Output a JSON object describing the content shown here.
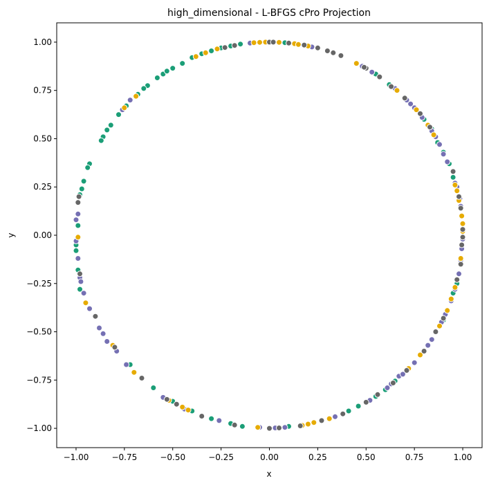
{
  "chart_data": {
    "type": "scatter",
    "title": "high_dimensional - L-BFGS cPro Projection",
    "xlabel": "x",
    "ylabel": "y",
    "xlim": [
      -1.1,
      1.1
    ],
    "ylim": [
      -1.1,
      1.1
    ],
    "xticks": [
      -1.0,
      -0.75,
      -0.5,
      -0.25,
      0.0,
      0.25,
      0.5,
      0.75,
      1.0
    ],
    "yticks": [
      -1.0,
      -0.75,
      -0.5,
      -0.25,
      0.0,
      0.25,
      0.5,
      0.75,
      1.0
    ],
    "xtick_labels": [
      "−1.00",
      "−0.75",
      "−0.50",
      "−0.25",
      "0.00",
      "0.25",
      "0.50",
      "0.75",
      "1.00"
    ],
    "ytick_labels": [
      "−1.00",
      "−0.75",
      "−0.50",
      "−0.25",
      "0.00",
      "0.25",
      "0.50",
      "0.75",
      "1.00"
    ],
    "grid": false,
    "legend": "none",
    "marker_edge_color": "#ffffff",
    "series": [
      {
        "color": "#1b9e77",
        "points": [
          [
            -0.15,
            0.99
          ],
          [
            -0.2,
            0.98
          ],
          [
            -0.25,
            0.97
          ],
          [
            -0.3,
            0.955
          ],
          [
            -0.35,
            0.94
          ],
          [
            -0.4,
            0.92
          ],
          [
            -0.45,
            0.89
          ],
          [
            -0.5,
            0.865
          ],
          [
            -0.55,
            0.835
          ],
          [
            -0.58,
            0.815
          ],
          [
            -0.63,
            0.775
          ],
          [
            -0.68,
            0.73
          ],
          [
            -0.74,
            0.67
          ],
          [
            -0.78,
            0.625
          ],
          [
            -0.82,
            0.57
          ],
          [
            -0.84,
            0.545
          ],
          [
            -0.86,
            0.51
          ],
          [
            -0.87,
            0.49
          ],
          [
            -0.93,
            0.37
          ],
          [
            -0.94,
            0.35
          ],
          [
            -0.96,
            0.28
          ],
          [
            -0.97,
            0.24
          ],
          [
            -0.98,
            0.21
          ],
          [
            -0.99,
            0.05
          ],
          [
            -1.0,
            -0.05
          ],
          [
            -1.0,
            -0.08
          ],
          [
            -0.99,
            -0.18
          ],
          [
            -0.98,
            -0.28
          ],
          [
            -0.72,
            -0.67
          ],
          [
            -0.6,
            -0.79
          ],
          [
            -0.5,
            -0.86
          ],
          [
            -0.4,
            -0.91
          ],
          [
            -0.3,
            -0.95
          ],
          [
            -0.2,
            -0.975
          ],
          [
            -0.14,
            -0.99
          ],
          [
            0.1,
            -0.99
          ],
          [
            0.41,
            -0.91
          ],
          [
            0.46,
            -0.885
          ],
          [
            0.55,
            -0.835
          ],
          [
            0.6,
            -0.8
          ],
          [
            0.65,
            -0.755
          ],
          [
            0.8,
            -0.6
          ],
          [
            0.9,
            -0.44
          ],
          [
            0.95,
            -0.3
          ],
          [
            0.97,
            -0.25
          ],
          [
            0.55,
            0.835
          ],
          [
            0.62,
            0.78
          ],
          [
            0.8,
            0.6
          ],
          [
            0.84,
            0.55
          ],
          [
            0.87,
            0.48
          ],
          [
            0.9,
            0.43
          ],
          [
            0.93,
            0.37
          ],
          [
            0.95,
            0.3
          ],
          [
            0.97,
            0.25
          ],
          [
            -0.05,
            0.998
          ],
          [
            0.08,
            0.997
          ],
          [
            -0.65,
            0.76
          ],
          [
            -0.53,
            0.85
          ]
        ]
      },
      {
        "color": "#7570b3",
        "points": [
          [
            -0.1,
            0.995
          ],
          [
            -0.72,
            0.7
          ],
          [
            -0.76,
            0.65
          ],
          [
            -0.99,
            0.11
          ],
          [
            -1.0,
            0.08
          ],
          [
            -1.0,
            -0.03
          ],
          [
            -0.99,
            -0.12
          ],
          [
            -0.98,
            -0.22
          ],
          [
            -0.975,
            -0.24
          ],
          [
            -0.96,
            -0.3
          ],
          [
            -0.93,
            -0.38
          ],
          [
            -0.88,
            -0.48
          ],
          [
            -0.86,
            -0.51
          ],
          [
            -0.84,
            -0.55
          ],
          [
            -0.79,
            -0.6
          ],
          [
            -0.74,
            -0.67
          ],
          [
            -0.55,
            -0.84
          ],
          [
            -0.44,
            -0.9
          ],
          [
            -0.26,
            -0.96
          ],
          [
            -0.05,
            -0.995
          ],
          [
            0.03,
            -0.998
          ],
          [
            0.08,
            -0.995
          ],
          [
            0.34,
            -0.94
          ],
          [
            0.52,
            -0.855
          ],
          [
            0.61,
            -0.79
          ],
          [
            0.63,
            -0.77
          ],
          [
            0.67,
            -0.73
          ],
          [
            0.69,
            -0.72
          ],
          [
            0.75,
            -0.66
          ],
          [
            0.78,
            -0.62
          ],
          [
            0.82,
            -0.57
          ],
          [
            0.84,
            -0.54
          ],
          [
            0.86,
            -0.5
          ],
          [
            0.89,
            -0.45
          ],
          [
            0.91,
            -0.41
          ],
          [
            0.94,
            -0.34
          ],
          [
            0.96,
            -0.28
          ],
          [
            0.98,
            -0.2
          ],
          [
            0.99,
            -0.13
          ],
          [
            0.995,
            -0.07
          ],
          [
            1.0,
            -0.02
          ],
          [
            0.99,
            0.15
          ],
          [
            0.985,
            0.19
          ],
          [
            0.97,
            0.25
          ],
          [
            0.96,
            0.27
          ],
          [
            0.92,
            0.38
          ],
          [
            0.9,
            0.42
          ],
          [
            0.88,
            0.47
          ],
          [
            0.86,
            0.51
          ],
          [
            0.84,
            0.54
          ],
          [
            0.79,
            0.61
          ],
          [
            0.75,
            0.66
          ],
          [
            0.73,
            0.68
          ],
          [
            0.71,
            0.7
          ],
          [
            0.65,
            0.76
          ],
          [
            0.53,
            0.845
          ],
          [
            0.48,
            0.875
          ],
          [
            0.22,
            0.975
          ]
        ]
      },
      {
        "color": "#e6ab02",
        "points": [
          [
            -0.38,
            0.925
          ],
          [
            -0.33,
            0.945
          ],
          [
            -0.27,
            0.965
          ],
          [
            -0.69,
            0.72
          ],
          [
            -0.75,
            0.66
          ],
          [
            -0.08,
            0.997
          ],
          [
            -0.05,
            0.999
          ],
          [
            -0.02,
            1.0
          ],
          [
            0.05,
            0.999
          ],
          [
            0.13,
            0.992
          ],
          [
            0.15,
            0.988
          ],
          [
            0.2,
            0.98
          ],
          [
            0.45,
            0.89
          ],
          [
            0.66,
            0.75
          ],
          [
            0.76,
            0.65
          ],
          [
            0.82,
            0.57
          ],
          [
            0.85,
            0.52
          ],
          [
            0.96,
            0.26
          ],
          [
            0.97,
            0.23
          ],
          [
            0.995,
            0.1
          ],
          [
            1.0,
            0.06
          ],
          [
            1.0,
            0.02
          ],
          [
            0.98,
            0.18
          ],
          [
            -0.99,
            -0.01
          ],
          [
            -0.95,
            -0.35
          ],
          [
            -0.81,
            -0.57
          ],
          [
            -0.7,
            -0.71
          ],
          [
            -0.52,
            -0.855
          ],
          [
            -0.45,
            -0.89
          ],
          [
            -0.42,
            -0.905
          ],
          [
            -0.06,
            -0.995
          ],
          [
            0.17,
            -0.985
          ],
          [
            0.2,
            -0.978
          ],
          [
            0.23,
            -0.97
          ],
          [
            0.31,
            -0.95
          ],
          [
            0.72,
            -0.69
          ],
          [
            0.78,
            -0.62
          ],
          [
            0.88,
            -0.47
          ],
          [
            0.92,
            -0.39
          ],
          [
            0.94,
            -0.33
          ],
          [
            0.96,
            -0.27
          ],
          [
            0.99,
            -0.12
          ]
        ]
      },
      {
        "color": "#666666",
        "points": [
          [
            -0.23,
            0.972
          ],
          [
            -0.18,
            0.983
          ],
          [
            0.0,
            1.0
          ],
          [
            0.02,
            1.0
          ],
          [
            0.1,
            0.995
          ],
          [
            0.18,
            0.985
          ],
          [
            0.25,
            0.97
          ],
          [
            0.3,
            0.955
          ],
          [
            0.33,
            0.945
          ],
          [
            0.37,
            0.93
          ],
          [
            0.5,
            0.865
          ],
          [
            0.57,
            0.82
          ],
          [
            0.7,
            0.71
          ],
          [
            0.78,
            0.63
          ],
          [
            0.83,
            0.56
          ],
          [
            0.95,
            0.33
          ],
          [
            0.98,
            0.2
          ],
          [
            0.99,
            0.14
          ],
          [
            1.0,
            0.03
          ],
          [
            1.0,
            -0.01
          ],
          [
            -0.99,
            0.17
          ],
          [
            -0.985,
            0.2
          ],
          [
            -0.98,
            -0.2
          ],
          [
            -0.9,
            -0.42
          ],
          [
            -0.8,
            -0.58
          ],
          [
            -0.66,
            -0.74
          ],
          [
            -0.53,
            -0.85
          ],
          [
            -0.48,
            -0.875
          ],
          [
            -0.35,
            -0.937
          ],
          [
            -0.18,
            -0.983
          ],
          [
            0.0,
            -1.0
          ],
          [
            0.05,
            -0.998
          ],
          [
            0.16,
            -0.987
          ],
          [
            0.27,
            -0.96
          ],
          [
            0.38,
            -0.925
          ],
          [
            0.5,
            -0.865
          ],
          [
            0.56,
            -0.825
          ],
          [
            0.64,
            -0.765
          ],
          [
            0.71,
            -0.7
          ],
          [
            0.8,
            -0.6
          ],
          [
            0.86,
            -0.5
          ],
          [
            0.9,
            -0.43
          ],
          [
            0.97,
            -0.23
          ],
          [
            0.99,
            -0.15
          ],
          [
            0.995,
            -0.05
          ],
          [
            0.63,
            0.77
          ],
          [
            0.49,
            0.87
          ]
        ]
      }
    ]
  }
}
